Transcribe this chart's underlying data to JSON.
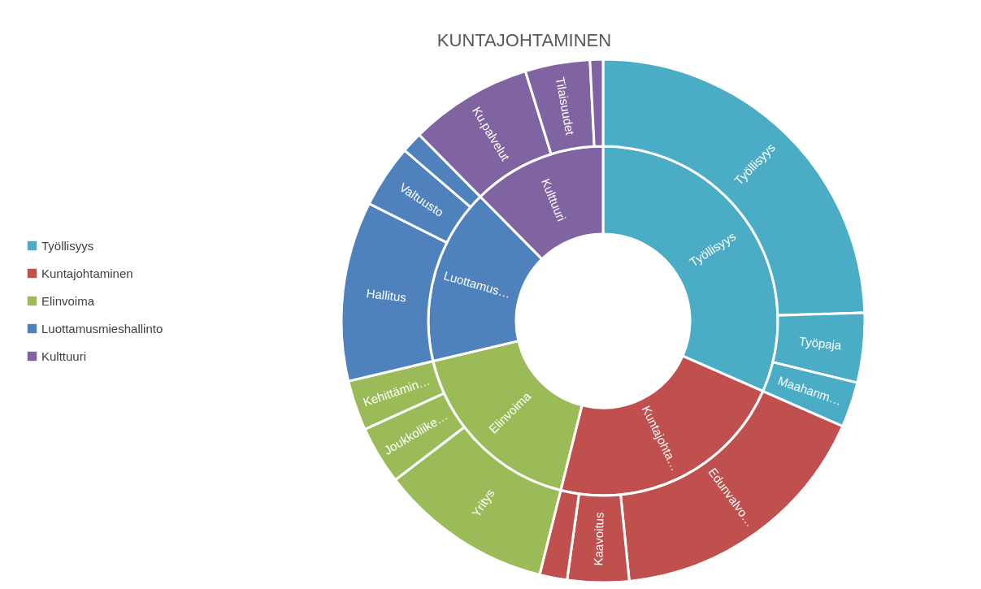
{
  "chart_data": [
    {
      "type": "donut",
      "title": "KUNTAJOHTAMINEN",
      "legend": "left",
      "categories": [
        "Työllisyys",
        "Kuntajohtaminen",
        "Elinvoima",
        "Luottamusmieshallinto",
        "Kulttuuri"
      ],
      "values": [
        31.6,
        22.3,
        17.4,
        16.3,
        12.4
      ],
      "value_labels": [
        "Työllisyys",
        "Kuntajohta…",
        "Elinvoima",
        "Luottamus…",
        "Kulttuuri"
      ],
      "colors": [
        "#4bacc6",
        "#c0504d",
        "#9bbb59",
        "#4f81bd",
        "#8064a2"
      ]
    },
    {
      "type": "donut",
      "categories": [
        "Työllisyys",
        "Työpaja",
        "Maahanm…",
        "Edunvalvo…",
        "Kaavoitus",
        null,
        "Yritys",
        "Joukkoliike…",
        "Kehittämin…",
        "Hallitus",
        "Valtuusto",
        null,
        "Ku.palvelut",
        "Tilaisuudet",
        null
      ],
      "values": [
        24.5,
        4.3,
        2.8,
        16.8,
        3.8,
        1.7,
        10.7,
        3.6,
        3.1,
        11.1,
        3.9,
        1.3,
        7.6,
        4.0,
        0.8
      ],
      "colors": [
        "#4bacc6",
        "#4bacc6",
        "#4bacc6",
        "#c0504d",
        "#c0504d",
        "#c0504d",
        "#9bbb59",
        "#9bbb59",
        "#9bbb59",
        "#4f81bd",
        "#4f81bd",
        "#4f81bd",
        "#8064a2",
        "#8064a2",
        "#8064a2"
      ]
    }
  ]
}
